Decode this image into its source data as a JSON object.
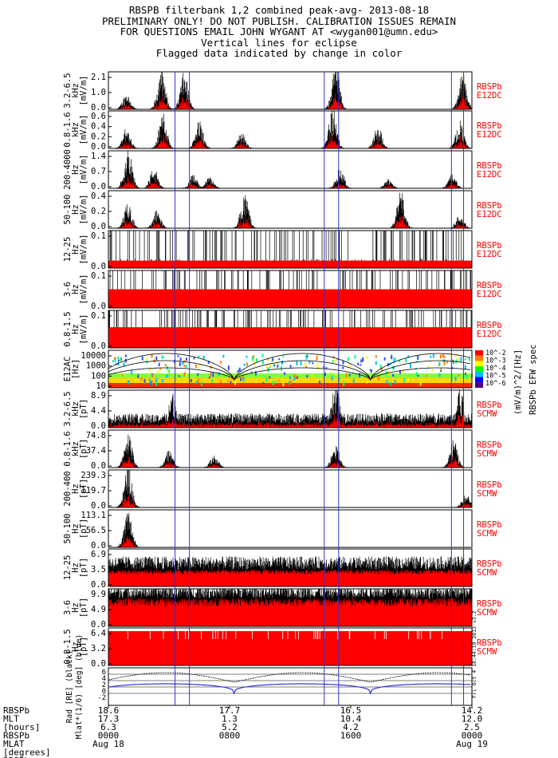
{
  "title_lines": [
    "RBSPB filterbank 1,2 combined peak-avg- 2013-08-18",
    "PRELIMINARY ONLY! DO NOT PUBLISH. CALIBRATION ISSUES REMAIN",
    "FOR QUESTIONS EMAIL JOHN WYGANT AT <wygan001@umn.edu>",
    "Vertical lines for eclipse",
    "Flagged data indicated by change in color"
  ],
  "colors": {
    "peak": "#000000",
    "avg": "#ff0000",
    "eclipse": "#3333cc",
    "ephem": "#3333dd",
    "label": "#ff0000"
  },
  "chart_data": {
    "type": "line",
    "x_range_hours": [
      0,
      24
    ],
    "eclipse_lines_hours": [
      4.4,
      5.35,
      14.25,
      15.2,
      22.65,
      23.45
    ],
    "panels": [
      {
        "id": "e1",
        "label": [
          "3.2-6.5",
          "kHz",
          "[mV/m]"
        ],
        "ticks": [
          "2.1",
          "1.0",
          "0.0"
        ],
        "ymax": 2.1,
        "tag": [
          "RBSPb",
          "E12DC"
        ],
        "style": "burst",
        "bursts": [
          [
            1.2,
            0.35
          ],
          [
            3.5,
            0.9
          ],
          [
            5.0,
            0.8
          ],
          [
            15.0,
            1.0
          ],
          [
            23.4,
            0.8
          ]
        ]
      },
      {
        "id": "e2",
        "label": [
          "0.8-1.6",
          "kHz",
          "[mV/m]"
        ],
        "ticks": [
          "0.6",
          "0.4",
          "0.2",
          "0.0"
        ],
        "ymax": 0.6,
        "tag": [
          "RBSPb",
          "E12DC"
        ],
        "style": "burst",
        "bursts": [
          [
            1.2,
            0.45
          ],
          [
            3.6,
            0.8
          ],
          [
            6.0,
            0.6
          ],
          [
            8.8,
            0.35
          ],
          [
            14.8,
            0.9
          ],
          [
            17.8,
            0.5
          ],
          [
            23.2,
            0.6
          ]
        ]
      },
      {
        "id": "e3",
        "label": [
          "200-4000",
          "Hz",
          "[mV/m]"
        ],
        "ticks": [
          "1.4",
          "0.7",
          "0.0"
        ],
        "ymax": 1.4,
        "tag": [
          "RBSPb",
          "E12DC"
        ],
        "style": "burst",
        "bursts": [
          [
            1.3,
            1.0
          ],
          [
            3.0,
            0.45
          ],
          [
            5.6,
            0.3
          ],
          [
            6.7,
            0.25
          ],
          [
            15.3,
            0.45
          ],
          [
            18.5,
            0.2
          ],
          [
            22.7,
            0.3
          ]
        ]
      },
      {
        "id": "e4",
        "label": [
          "50-100",
          "Hz",
          "[mV/m]"
        ],
        "ticks": [
          "0.4",
          "0.2",
          "0.0"
        ],
        "ymax": 0.4,
        "tag": [
          "RBSPb",
          "E12DC"
        ],
        "style": "burst",
        "bursts": [
          [
            1.3,
            0.55
          ],
          [
            3.2,
            0.4
          ],
          [
            9.0,
            0.8
          ],
          [
            19.3,
            0.8
          ],
          [
            23.2,
            0.3
          ]
        ]
      },
      {
        "id": "e5",
        "label": [
          "12-25",
          "Hz",
          "[mV/m]"
        ],
        "ticks": [
          "0.1",
          "0.0"
        ],
        "ymax": 0.1,
        "tag": [
          "RBSPb",
          "E12DC"
        ],
        "style": "sat",
        "fill": 0.2
      },
      {
        "id": "e6",
        "label": [
          "3-6",
          "Hz",
          "[mV/m]"
        ],
        "ticks": [
          "0.1",
          "0.0"
        ],
        "ymax": 0.1,
        "tag": [
          "RBSPb",
          "E12DC"
        ],
        "style": "sat",
        "fill": 0.5
      },
      {
        "id": "e7",
        "label": [
          "0.8-1.5",
          "Hz",
          "[mV/m]"
        ],
        "ticks": [
          "0.1",
          "0.0"
        ],
        "ymax": 0.1,
        "tag": [
          "RBSPb",
          "E12DC"
        ],
        "style": "sat",
        "fill": 0.55
      },
      {
        "id": "spec",
        "label": [
          "E12AC",
          "[Hz]"
        ],
        "ticks": [
          "10000",
          "1000",
          "100",
          "10"
        ],
        "tag": [],
        "style": "spec",
        "colorbar": {
          "ticks": [
            "10^-2",
            "10^-3",
            "10^-4",
            "10^-5",
            "10^-6"
          ],
          "title": "(mV/m)^2/[Hz]",
          "subtitle": "RBSPb EFW spec"
        }
      },
      {
        "id": "b1",
        "label": [
          "3.2-6.5",
          "kHz",
          "[pT]"
        ],
        "ticks": [
          "8.9",
          "4.4",
          "0.0"
        ],
        "ymax": 8.9,
        "tag": [
          "RBSPb",
          "SCMW"
        ],
        "style": "burst",
        "base": 0.3,
        "bursts": [
          [
            4.2,
            0.8
          ],
          [
            15.0,
            1.0
          ],
          [
            23.2,
            0.9
          ]
        ]
      },
      {
        "id": "b2",
        "label": [
          "0.8-1.6",
          "kHz",
          "[pT]"
        ],
        "ticks": [
          "74.8",
          "37.4",
          "0.0"
        ],
        "ymax": 74.8,
        "tag": [
          "RBSPb",
          "SCMW"
        ],
        "style": "burst",
        "bursts": [
          [
            1.3,
            0.8
          ],
          [
            4.0,
            0.4
          ],
          [
            7.0,
            0.3
          ],
          [
            15.0,
            0.5
          ],
          [
            22.8,
            0.6
          ]
        ]
      },
      {
        "id": "b3",
        "label": [
          "200-400",
          "Hz",
          "[pT]"
        ],
        "ticks": [
          "239.3",
          "119.7",
          "0.0"
        ],
        "ymax": 239.3,
        "tag": [
          "RBSPb",
          "SCMW"
        ],
        "style": "burst",
        "bursts": [
          [
            1.3,
            0.9
          ],
          [
            23.6,
            0.3
          ]
        ]
      },
      {
        "id": "b4",
        "label": [
          "50-100",
          "Hz",
          "[pT]"
        ],
        "ticks": [
          "113.1",
          "56.5",
          "0.0"
        ],
        "ymax": 113.1,
        "tag": [
          "RBSPb",
          "SCMW"
        ],
        "style": "burst",
        "bursts": [
          [
            1.3,
            0.8
          ]
        ]
      },
      {
        "id": "b5",
        "label": [
          "12-25",
          "Hz",
          "[pT]"
        ],
        "ticks": [
          "6.9",
          "3.5",
          "0.0"
        ],
        "ymax": 6.9,
        "tag": [
          "RBSPb",
          "SCMW"
        ],
        "style": "noise",
        "level": 0.45
      },
      {
        "id": "b6",
        "label": [
          "3-6",
          "Hz",
          "[pT]"
        ],
        "ticks": [
          "9.9",
          "4.9",
          "0.0"
        ],
        "ymax": 9.9,
        "tag": [
          "RBSPb",
          "SCMW"
        ],
        "style": "noise",
        "level": 0.75
      },
      {
        "id": "b7",
        "label": [
          "0.8-1.5",
          "Hz",
          "[pT]"
        ],
        "ticks": [
          "6.4",
          "3.2",
          "0.0"
        ],
        "ymax": 6.4,
        "tag": [
          "RBSPb",
          "SCMW"
        ],
        "style": "full"
      }
    ],
    "ephem_panel": {
      "label": [
        "Rad",
        "[RE]",
        "(black)",
        "Mlat*(1/6)",
        "[deg]",
        "(blue)"
      ],
      "ticks": [
        "6",
        "4",
        "2",
        "0",
        "-2"
      ]
    },
    "xaxis": {
      "row_labels": [
        "RBSPb",
        "MLT",
        "[hours]",
        "RBSPb",
        "MLAT",
        "[degrees]",
        "RBSPb"
      ],
      "tick_hours": [
        0,
        8,
        16,
        24
      ],
      "columns": [
        [
          "18.6",
          "17.3",
          "6.3",
          "0000",
          "Aug 18"
        ],
        [
          "17.7",
          "1.3",
          "5.2",
          "0800",
          ""
        ],
        [
          "16.5",
          "10.4",
          "4.2",
          "1600",
          ""
        ],
        [
          "14.2",
          "12.0",
          "2.5",
          "0000",
          "Aug 19"
        ]
      ]
    },
    "side_note": "Fri Oct 4 18:44:19 2013 v3.2"
  }
}
